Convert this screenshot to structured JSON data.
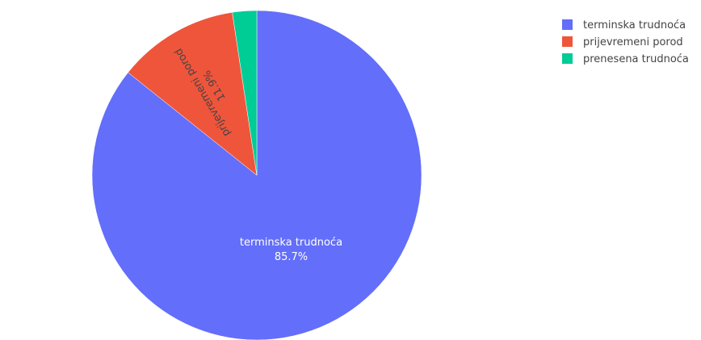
{
  "chart_data": {
    "type": "pie",
    "title": "",
    "slices": [
      {
        "label": "terminska trudnoća",
        "value": 85.7,
        "percent_text": "85.7%",
        "color": "#636efa",
        "text_position": "inside"
      },
      {
        "label": "prijevremeni porod",
        "value": 11.9,
        "percent_text": "11.9%",
        "color": "#ef553b",
        "text_position": "inside-radial"
      },
      {
        "label": "prenesena trudnoća",
        "value": 2.38,
        "percent_text": "2.38%",
        "color": "#00cc96",
        "text_position": "outside"
      }
    ],
    "direction": "clockwise",
    "start": "top",
    "legend_position": "top-right"
  }
}
